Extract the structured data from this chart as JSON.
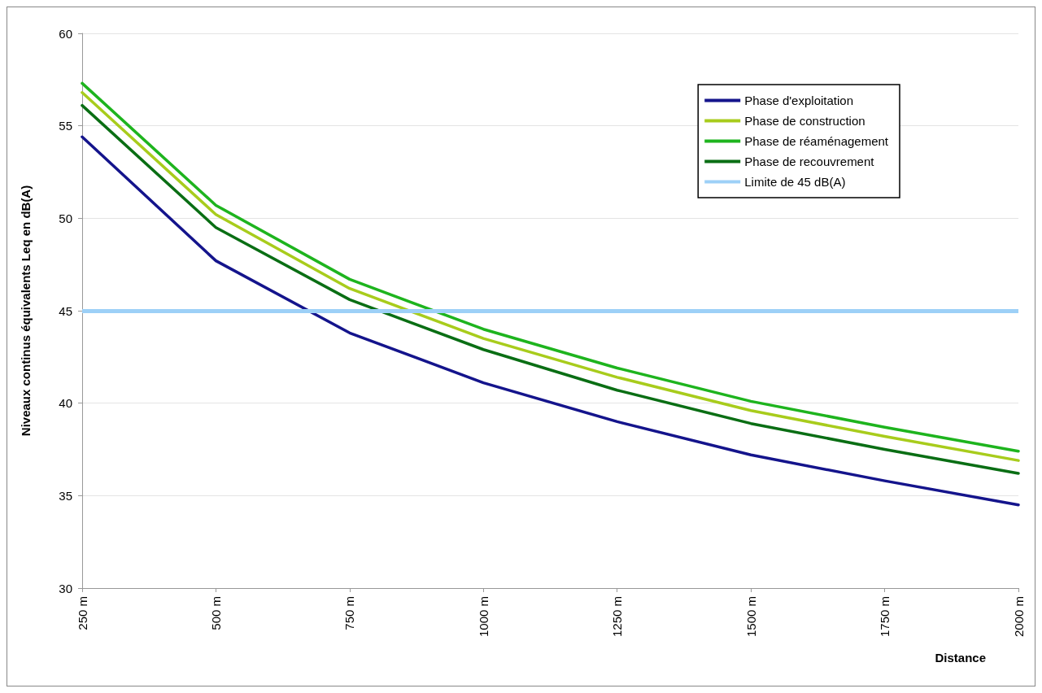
{
  "chart_data": {
    "type": "line",
    "xlabel": "Distance",
    "ylabel": "Niveaux continus équivalents Leq en dB(A)",
    "categories": [
      "250 m",
      "500 m",
      "750 m",
      "1000 m",
      "1250 m",
      "1500 m",
      "1750 m",
      "2000 m"
    ],
    "series": [
      {
        "name": "Phase d'exploitation",
        "color": "#14148c",
        "values": [
          54.4,
          47.7,
          43.8,
          41.1,
          39.0,
          37.2,
          35.8,
          34.5
        ]
      },
      {
        "name": "Phase de construction",
        "color": "#a8cc1c",
        "values": [
          56.8,
          50.2,
          46.2,
          43.5,
          41.4,
          39.6,
          38.2,
          36.9
        ]
      },
      {
        "name": "Phase de réaménagement",
        "color": "#1eb41e",
        "values": [
          57.3,
          50.7,
          46.7,
          44.0,
          41.9,
          40.1,
          38.7,
          37.4
        ]
      },
      {
        "name": "Phase de recouvrement",
        "color": "#0a6e14",
        "values": [
          56.1,
          49.5,
          45.6,
          42.9,
          40.7,
          38.9,
          37.5,
          36.2
        ]
      }
    ],
    "ref_lines": [
      {
        "axis": "y",
        "value": 45,
        "label": "Limite de 45 dB(A)",
        "color": "#9dd0f7"
      }
    ],
    "ylim": [
      30,
      60
    ],
    "yticks": [
      30,
      35,
      40,
      45,
      50,
      55,
      60
    ],
    "grid": "y",
    "legend": "top right",
    "marker": "none",
    "line_style": "solid"
  }
}
